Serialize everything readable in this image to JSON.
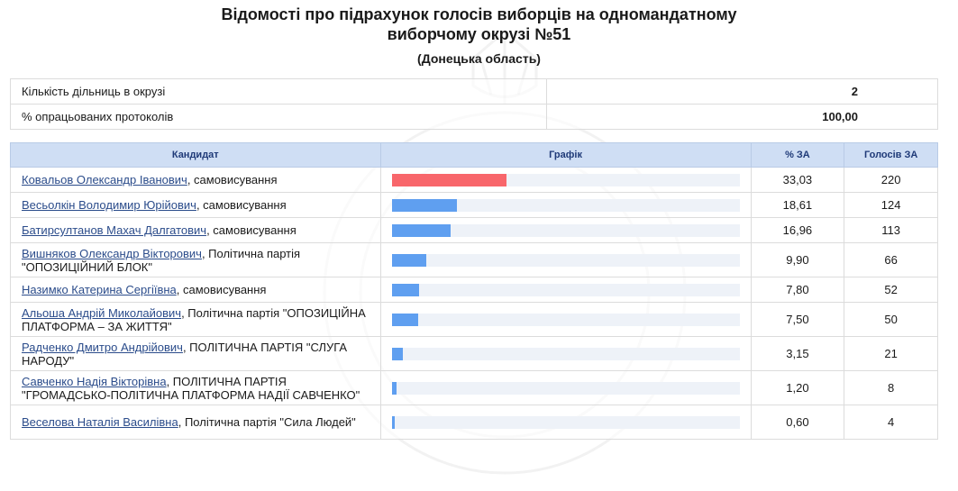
{
  "header": {
    "title_line1": "Відомості про підрахунок голосів виборців на одномандатному",
    "title_line2": "виборчому окрузі №51",
    "subtitle": "(Донецька область)"
  },
  "summary": [
    {
      "label": "Кількість дільниць в окрузі",
      "value": "2"
    },
    {
      "label": "% опрацьованих протоколів",
      "value": "100,00"
    }
  ],
  "results": {
    "headers": {
      "candidate": "Кандидат",
      "chart": "Графік",
      "pct": "% ЗА",
      "votes": "Голосів ЗА"
    },
    "colors": {
      "leader": "#f8666b",
      "other": "#5f9ff0",
      "track": "#eef2f8"
    },
    "rows": [
      {
        "name": "Ковальов Олександр Іванович",
        "party": ", самовисування",
        "pct": "33,03",
        "votes": "220",
        "share": 33.03
      },
      {
        "name": "Весьолкін Володимир Юрійович",
        "party": ", самовисування",
        "pct": "18,61",
        "votes": "124",
        "share": 18.61
      },
      {
        "name": "Батирсултанов Махач Далгатович",
        "party": ", самовисування",
        "pct": "16,96",
        "votes": "113",
        "share": 16.96
      },
      {
        "name": "Вишняков Олександр Вікторович",
        "party": ", Політична партія \"ОПОЗИЦІЙНИЙ БЛОК\"",
        "pct": "9,90",
        "votes": "66",
        "share": 9.9
      },
      {
        "name": "Назимко Катерина Сергіївна",
        "party": ", самовисування",
        "pct": "7,80",
        "votes": "52",
        "share": 7.8
      },
      {
        "name": "Альоша Андрій Миколайович",
        "party": ", Політична партія \"ОПОЗИЦІЙНА ПЛАТФОРМА – ЗА ЖИТТЯ\"",
        "pct": "7,50",
        "votes": "50",
        "share": 7.5
      },
      {
        "name": "Радченко Дмитро Андрійович",
        "party": ", ПОЛІТИЧНА ПАРТІЯ \"СЛУГА НАРОДУ\"",
        "pct": "3,15",
        "votes": "21",
        "share": 3.15
      },
      {
        "name": "Савченко Надія Вікторівна",
        "party": ", ПОЛІТИЧНА ПАРТІЯ \"ГРОМАДСЬКО-ПОЛІТИЧНА ПЛАТФОРМА НАДІЇ САВЧЕНКО\"",
        "pct": "1,20",
        "votes": "8",
        "share": 1.2
      },
      {
        "name": "Веселова Наталія Василівна",
        "party": ", Політична партія \"Сила Людей\"",
        "pct": "0,60",
        "votes": "4",
        "share": 0.6
      }
    ]
  }
}
